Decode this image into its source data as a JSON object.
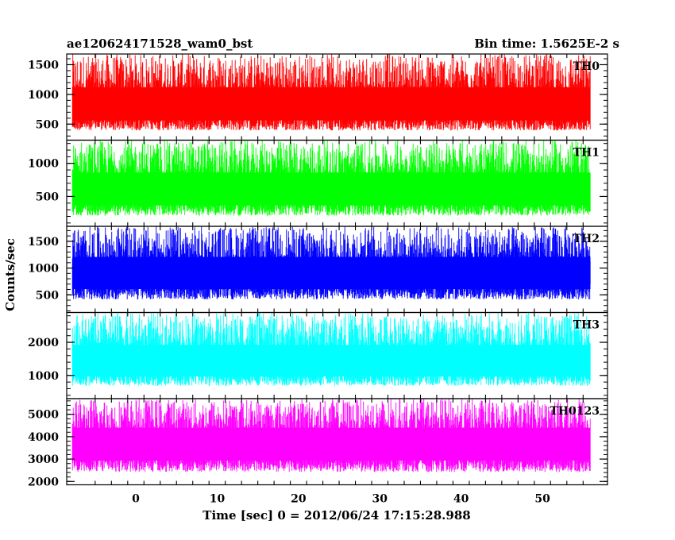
{
  "header": {
    "title": "ae120624171528_wam0_bst",
    "bin_time": "Bin time: 1.5625E-2 s"
  },
  "chart_data": {
    "type": "line",
    "title": "ae120624171528_wam0_bst",
    "subtitle": "Bin time: 1.5625E-2 s",
    "xlabel": "Time [sec] 0 = 2012/06/24 17:15:28.988",
    "ylabel": "Counts/sec",
    "xlim": [
      -8.5,
      58
    ],
    "data_x_range": [
      -7.8,
      55.9
    ],
    "x_ticks": [
      0,
      10,
      20,
      30,
      40,
      50
    ],
    "x_tick_labels": [
      "0",
      "10",
      "20",
      "30",
      "40",
      "50"
    ],
    "grid": false,
    "panels": [
      {
        "name": "TH0",
        "color": "#ff0000",
        "ylim": [
          230,
          1680
        ],
        "y_ticks": [
          500,
          1000,
          1500
        ],
        "y_tick_labels": [
          "500",
          "1000",
          "1500"
        ],
        "approx_mean": 820,
        "approx_min": 250,
        "approx_max": 1680
      },
      {
        "name": "TH1",
        "color": "#00ff00",
        "ylim": [
          50,
          1350
        ],
        "y_ticks": [
          500,
          1000
        ],
        "y_tick_labels": [
          "500",
          "1000"
        ],
        "approx_mean": 600,
        "approx_min": 80,
        "approx_max": 1350
      },
      {
        "name": "TH2",
        "color": "#0000ff",
        "ylim": [
          170,
          1780
        ],
        "y_ticks": [
          500,
          1000,
          1500
        ],
        "y_tick_labels": [
          "500",
          "1000",
          "1500"
        ],
        "approx_mean": 900,
        "approx_min": 250,
        "approx_max": 1780
      },
      {
        "name": "TH3",
        "color": "#00ffff",
        "ylim": [
          300,
          2900
        ],
        "y_ticks": [
          1000,
          2000
        ],
        "y_tick_labels": [
          "1000",
          "2000"
        ],
        "approx_mean": 1400,
        "approx_min": 450,
        "approx_max": 2900
      },
      {
        "name": "TH0123",
        "color": "#ff00ff",
        "ylim": [
          1850,
          5700
        ],
        "y_ticks": [
          2000,
          3000,
          4000,
          5000
        ],
        "y_tick_labels": [
          "2000",
          "3000",
          "4000",
          "5000"
        ],
        "approx_mean": 3700,
        "approx_min": 2000,
        "approx_max": 5700
      }
    ]
  }
}
